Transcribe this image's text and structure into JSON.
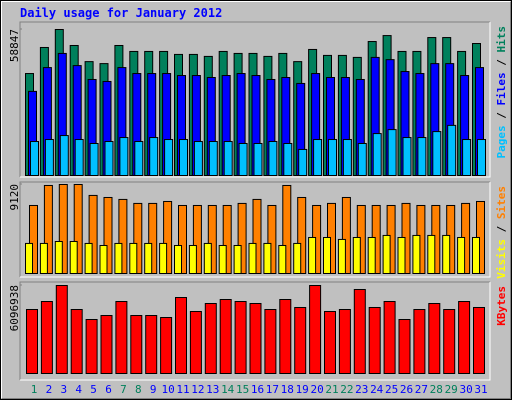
{
  "chart_data": [
    {
      "type": "bar",
      "title": "Daily usage for January 2012",
      "ylim": [
        0,
        58847
      ],
      "yticks": [
        58847
      ],
      "legend_separator": " / ",
      "series": [
        {
          "name": "Hits",
          "color": "#00805c",
          "values": [
            41100,
            51600,
            58847,
            52400,
            45900,
            45100,
            52400,
            50000,
            50000,
            50000,
            48800,
            48800,
            48000,
            50000,
            49200,
            49200,
            48000,
            49200,
            45900,
            50800,
            48400,
            48400,
            47600,
            54000,
            56400,
            50000,
            50000,
            55600,
            55600,
            50000,
            53200
          ]
        },
        {
          "name": "Files",
          "color": "#0000ff",
          "values": [
            33900,
            43500,
            49200,
            44300,
            38700,
            37900,
            43500,
            41100,
            41100,
            41100,
            40300,
            40300,
            39500,
            40300,
            41100,
            40300,
            38700,
            39500,
            37100,
            41100,
            39500,
            39500,
            38700,
            47600,
            46700,
            41900,
            41100,
            45100,
            45100,
            40300,
            43500
          ]
        },
        {
          "name": "Pages",
          "color": "#00c0ff",
          "values": [
            13700,
            14500,
            16100,
            14500,
            12900,
            13700,
            15300,
            13700,
            15300,
            14500,
            14500,
            13700,
            13700,
            13700,
            12900,
            12900,
            13700,
            12900,
            10500,
            14500,
            14500,
            14500,
            12900,
            16900,
            18500,
            15300,
            15300,
            17700,
            20200,
            14500,
            14500
          ]
        }
      ]
    },
    {
      "type": "bar",
      "ylim": [
        0,
        9120
      ],
      "yticks": [
        9120
      ],
      "legend_separator": " / ",
      "series": [
        {
          "name": "Sites",
          "color": "#ff8000",
          "values": [
            6970,
            9020,
            9120,
            9120,
            8000,
            7790,
            7590,
            7180,
            7180,
            7380,
            6970,
            6970,
            6970,
            6970,
            7180,
            7590,
            6970,
            9020,
            7790,
            6970,
            7180,
            7790,
            6970,
            6970,
            6970,
            7180,
            6970,
            6970,
            6970,
            7180,
            7380
          ]
        },
        {
          "name": "Visits",
          "color": "#ffff00",
          "values": [
            3080,
            3080,
            3280,
            3280,
            3080,
            2870,
            3080,
            3080,
            3080,
            3080,
            2870,
            2870,
            3080,
            2870,
            2870,
            3080,
            3080,
            2870,
            3080,
            3690,
            3690,
            3490,
            3690,
            3690,
            3900,
            3690,
            3900,
            3900,
            3900,
            3690,
            3690
          ]
        }
      ]
    },
    {
      "type": "bar",
      "ylim": [
        0,
        6096938
      ],
      "yticks": [
        6096938
      ],
      "categories": [
        "1",
        "2",
        "3",
        "4",
        "5",
        "6",
        "7",
        "8",
        "9",
        "10",
        "11",
        "12",
        "13",
        "14",
        "15",
        "16",
        "17",
        "18",
        "19",
        "20",
        "21",
        "22",
        "23",
        "24",
        "25",
        "26",
        "27",
        "28",
        "29",
        "30",
        "31"
      ],
      "category_colors": [
        "#00805c",
        "#0000ff",
        "#0000ff",
        "#0000ff",
        "#0000ff",
        "#0000ff",
        "#00805c",
        "#00805c",
        "#0000ff",
        "#0000ff",
        "#0000ff",
        "#0000ff",
        "#0000ff",
        "#00805c",
        "#00805c",
        "#0000ff",
        "#0000ff",
        "#0000ff",
        "#0000ff",
        "#0000ff",
        "#00805c",
        "#00805c",
        "#0000ff",
        "#0000ff",
        "#0000ff",
        "#0000ff",
        "#0000ff",
        "#00805c",
        "#00805c",
        "#0000ff",
        "#0000ff"
      ],
      "series": [
        {
          "name": "KBytes",
          "color": "#ff0000",
          "values": [
            4434000,
            4988000,
            6096938,
            4434000,
            3741000,
            4018000,
            4988000,
            4018000,
            4018000,
            3880000,
            5265000,
            4296000,
            4850000,
            5127000,
            4988000,
            4850000,
            4434000,
            5127000,
            4573000,
            6096938,
            4296000,
            4434000,
            5820000,
            4573000,
            4988000,
            3741000,
            4434000,
            4850000,
            4434000,
            4988000,
            4573000
          ]
        }
      ]
    }
  ]
}
